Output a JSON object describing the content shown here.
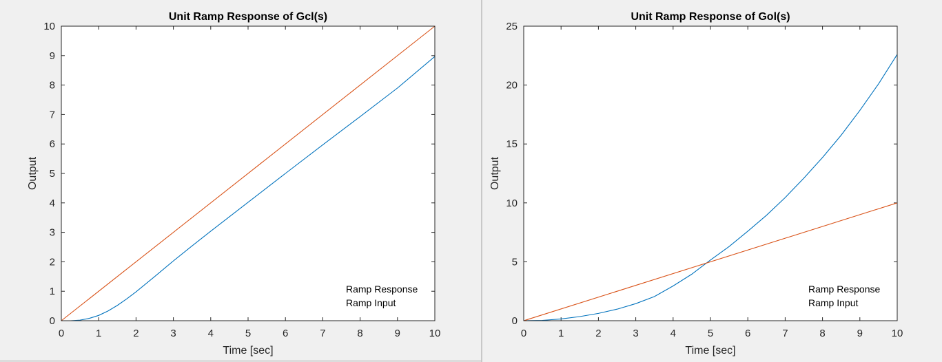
{
  "chart_data": [
    {
      "type": "line",
      "title": "Unit Ramp Response of Gcl(s)",
      "xlabel": "Time [sec]",
      "ylabel": "Output",
      "xlim": [
        0,
        10
      ],
      "ylim": [
        0,
        10
      ],
      "xticks": [
        "0",
        "1",
        "2",
        "3",
        "4",
        "5",
        "6",
        "7",
        "8",
        "9",
        "10"
      ],
      "yticks": [
        "0",
        "1",
        "2",
        "3",
        "4",
        "5",
        "6",
        "7",
        "8",
        "9",
        "10"
      ],
      "legend": {
        "position": "bottom-right",
        "entries": [
          "Ramp Response",
          "Ramp Input"
        ]
      },
      "series": [
        {
          "name": "Ramp Response",
          "color": "#0072bd",
          "x": [
            0,
            0.25,
            0.5,
            0.75,
            1,
            1.25,
            1.5,
            1.75,
            2,
            2.5,
            3,
            3.5,
            4,
            5,
            6,
            7,
            8,
            9,
            10
          ],
          "y": [
            0,
            0.0,
            0.02,
            0.08,
            0.18,
            0.33,
            0.52,
            0.74,
            0.98,
            1.5,
            2.03,
            2.54,
            3.04,
            4.02,
            5.0,
            5.97,
            6.93,
            7.9,
            8.97
          ]
        },
        {
          "name": "Ramp Input",
          "color": "#d95319",
          "x": [
            0,
            10
          ],
          "y": [
            0,
            10
          ]
        }
      ]
    },
    {
      "type": "line",
      "title": "Unit Ramp Response of Gol(s)",
      "xlabel": "Time [sec]",
      "ylabel": "Output",
      "xlim": [
        0,
        10
      ],
      "ylim": [
        0,
        25
      ],
      "xticks": [
        "0",
        "1",
        "2",
        "3",
        "4",
        "5",
        "6",
        "7",
        "8",
        "9",
        "10"
      ],
      "yticks": [
        "0",
        "5",
        "10",
        "15",
        "20",
        "25"
      ],
      "legend": {
        "position": "bottom-right",
        "entries": [
          "Ramp Response",
          "Ramp Input"
        ]
      },
      "series": [
        {
          "name": "Ramp Response",
          "color": "#0072bd",
          "x": [
            0,
            0.5,
            1,
            1.5,
            2,
            2.5,
            3,
            3.5,
            4,
            4.5,
            5,
            5.5,
            6,
            6.5,
            7,
            7.5,
            8,
            8.5,
            9,
            9.5,
            10
          ],
          "y": [
            0,
            0.03,
            0.15,
            0.35,
            0.62,
            0.98,
            1.45,
            2.05,
            2.95,
            3.95,
            5.15,
            6.3,
            7.6,
            8.95,
            10.45,
            12.1,
            13.85,
            15.75,
            17.85,
            20.1,
            22.6
          ]
        },
        {
          "name": "Ramp Input",
          "color": "#d95319",
          "x": [
            0,
            10
          ],
          "y": [
            0,
            10
          ]
        }
      ]
    }
  ]
}
